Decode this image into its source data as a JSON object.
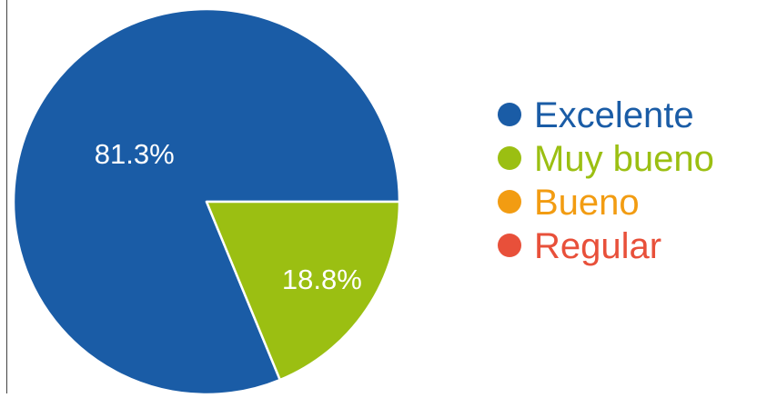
{
  "chart_data": {
    "type": "pie",
    "title": "",
    "categories": [
      "Excelente",
      "Muy bueno",
      "Bueno",
      "Regular"
    ],
    "values": [
      81.3,
      18.8,
      0,
      0
    ],
    "data_labels": [
      "81.3%",
      "18.8%",
      "",
      ""
    ],
    "colors": [
      "#1a5ca6",
      "#9bbf12",
      "#f29c12",
      "#e8503a"
    ],
    "legend_placement": "right",
    "grid": false
  }
}
